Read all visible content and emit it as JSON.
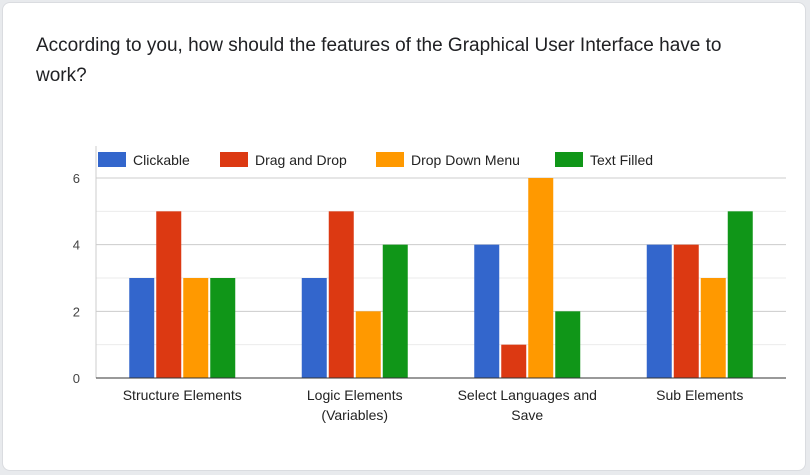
{
  "question": "According to you, how should the features of the Graphical User Interface have to work?",
  "chart_data": {
    "type": "bar",
    "categories": [
      [
        "Structure Elements"
      ],
      [
        "Logic Elements",
        "(Variables)"
      ],
      [
        "Select Languages and",
        "Save"
      ],
      [
        "Sub Elements"
      ]
    ],
    "series": [
      {
        "name": "Clickable",
        "color": "#3366cc",
        "values": [
          3,
          3,
          4,
          4
        ]
      },
      {
        "name": "Drag and Drop",
        "color": "#dc3912",
        "values": [
          5,
          5,
          1,
          4
        ]
      },
      {
        "name": "Drop Down Menu",
        "color": "#ff9900",
        "values": [
          3,
          2,
          6,
          3
        ]
      },
      {
        "name": "Text Filled",
        "color": "#109618",
        "values": [
          3,
          4,
          2,
          5
        ]
      }
    ],
    "ylim": [
      0,
      6
    ],
    "yticks": [
      0,
      2,
      4,
      6
    ],
    "grid": true,
    "legend": "top"
  }
}
